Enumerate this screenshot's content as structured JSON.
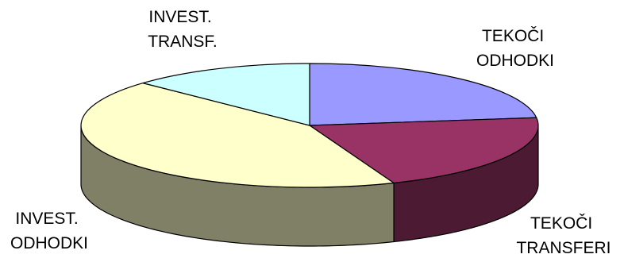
{
  "chart_data": {
    "type": "pie",
    "three_d": true,
    "title": "",
    "legend": "none",
    "slices": [
      {
        "name": "slice-tekoci-odhodki",
        "label_lines": [
          "TEKOČI",
          "ODHODKI"
        ],
        "value": 23,
        "color": "#9999ff"
      },
      {
        "name": "slice-tekoci-transferi",
        "label_lines": [
          "TEKOČI",
          "TRANSFERI"
        ],
        "value": 21,
        "color": "#993366"
      },
      {
        "name": "slice-invest-odhodki",
        "label_lines": [
          "INVEST.",
          "ODHODKI"
        ],
        "value": 43,
        "color": "#ffffcc"
      },
      {
        "name": "slice-invest-transf",
        "label_lines": [
          "INVEST.",
          "TRANSF."
        ],
        "value": 13,
        "color": "#ccffff"
      }
    ]
  }
}
